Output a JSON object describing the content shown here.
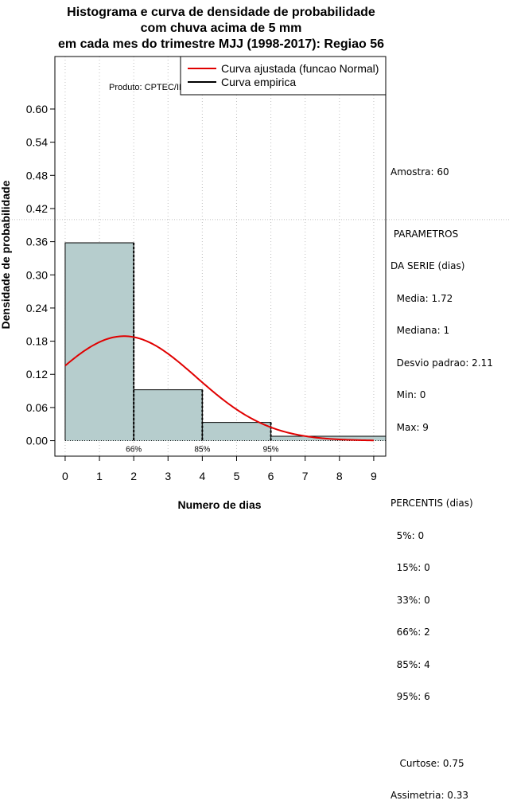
{
  "title_lines": [
    "Histograma e curva de densidade de probabilidade",
    "com chuva acima de 5 mm",
    "em cada mes do trimestre MJJ (1998-2017): Regiao 56"
  ],
  "produto": "Produto: CPTEC/INPE",
  "stats": {
    "amostra": "Amostra: 60",
    "parametros_title": " PARAMETROS",
    "parametros_subtitle": "DA SERIE (dias)",
    "media": "  Media: 1.72",
    "mediana": "  Mediana: 1",
    "desvio": "  Desvio padrao: 2.11",
    "min": "  Min: 0",
    "max": "  Max: 9",
    "percentis_title": "PERCENTIS (dias)",
    "p5": "  5%: 0",
    "p15": "  15%: 0",
    "p33": "  33%: 0",
    "p66": "  66%: 2",
    "p85": "  85%: 4",
    "p95": "  95%: 6",
    "curtose": "   Curtose: 0.75",
    "assimetria": "Assimetria: 0.33"
  },
  "colors": {
    "bar_fill": "#b6cdcd",
    "curve": "#e00000",
    "grid": "#c0c0c0"
  },
  "chart_data": {
    "type": "bar",
    "title": "Histograma e curva de densidade de probabilidade com chuva acima de 5 mm em cada mes do trimestre MJJ (1998-2017): Regiao 56",
    "xlabel": "Numero de dias",
    "ylabel": "Densidade de probabilidade",
    "xlim": [
      -0.3,
      9.35
    ],
    "ylim": [
      -0.028,
      0.695
    ],
    "x_ticks": [
      0,
      1,
      2,
      3,
      4,
      5,
      6,
      7,
      8,
      9
    ],
    "y_ticks": [
      0.0,
      0.06,
      0.12,
      0.18,
      0.24,
      0.3,
      0.36,
      0.42,
      0.48,
      0.54,
      0.6
    ],
    "y_tick_labels": [
      "0.00",
      "0.06",
      "0.12",
      "0.18",
      "0.24",
      "0.30",
      "0.36",
      "0.42",
      "0.48",
      "0.54",
      "0.60"
    ],
    "reference_line_y": 0.4,
    "bins": [
      {
        "x0": 0,
        "x1": 2,
        "density": 0.358
      },
      {
        "x0": 2,
        "x1": 4,
        "density": 0.092
      },
      {
        "x0": 4,
        "x1": 6,
        "density": 0.033
      },
      {
        "x0": 6,
        "x1": 9.35,
        "density": 0.008
      }
    ],
    "fitted_curve": {
      "name": "Curva ajustada (funcao Normal)",
      "mean": 1.72,
      "sd": 2.11,
      "x_from": 0,
      "x_to": 9
    },
    "empirical_dashes": [
      2,
      4,
      6
    ],
    "percentile_markers": [
      {
        "x": 2,
        "label": "66%"
      },
      {
        "x": 4,
        "label": "85%"
      },
      {
        "x": 6,
        "label": "95%"
      }
    ],
    "legend": [
      {
        "label": "Curva ajustada (funcao Normal)",
        "color": "#e00000"
      },
      {
        "label": "Curva empirica",
        "color": "#000000"
      }
    ],
    "legend_position": "top-right"
  }
}
